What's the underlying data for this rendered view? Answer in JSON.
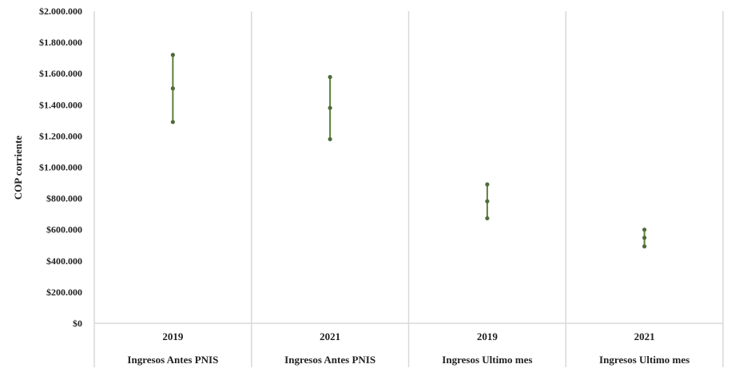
{
  "chart_data": {
    "type": "scatter",
    "subtype": "high-low-mean range",
    "ylabel": "COP corriente",
    "ylim": [
      0,
      2000000
    ],
    "yticks": [
      0,
      200000,
      400000,
      600000,
      800000,
      1000000,
      1200000,
      1400000,
      1600000,
      1800000,
      2000000
    ],
    "ytick_labels": [
      "$0",
      "$200.000",
      "$400.000",
      "$600.000",
      "$800.000",
      "$1.000.000",
      "$1.200.000",
      "$1.400.000",
      "$1.600.000",
      "$1.800.000",
      "$2.000.000"
    ],
    "categories": [
      {
        "year": "2019",
        "group": "Ingresos Antes PNIS"
      },
      {
        "year": "2021",
        "group": "Ingresos Antes PNIS"
      },
      {
        "year": "2019",
        "group": "Ingresos Ultimo mes"
      },
      {
        "year": "2021",
        "group": "Ingresos Ultimo mes"
      }
    ],
    "values": [
      {
        "high": 1720000,
        "mean": 1505000,
        "low": 1290000
      },
      {
        "high": 1578000,
        "mean": 1380000,
        "low": 1180000
      },
      {
        "high": 890000,
        "mean": 782000,
        "low": 673000
      },
      {
        "high": 600000,
        "mean": 548000,
        "low": 493000
      }
    ],
    "grid": "vertical category separators only",
    "legend": "none",
    "colors": {
      "series": "#5e7f3a",
      "marker": "#4f6b3a",
      "grid": "#d9d9d9"
    }
  }
}
